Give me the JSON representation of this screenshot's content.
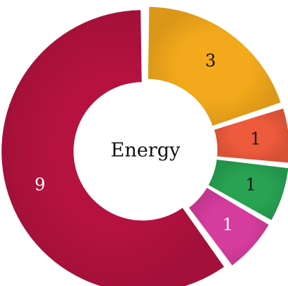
{
  "chart_data": {
    "type": "pie",
    "title": "",
    "center_label": "Energy",
    "slices": [
      {
        "label": "3",
        "value": 3,
        "color": "#F3A91B",
        "label_color": "#111111"
      },
      {
        "label": "1",
        "value": 1,
        "color": "#EE5A3C",
        "label_color": "#111111"
      },
      {
        "label": "1",
        "value": 1,
        "color": "#27A352",
        "label_color": "#111111"
      },
      {
        "label": "1",
        "value": 1,
        "color": "#D63C9D",
        "label_color": "#ffffff"
      },
      {
        "label": "9",
        "value": 9,
        "color": "#B5123F",
        "label_color": "#ffffff"
      }
    ]
  }
}
